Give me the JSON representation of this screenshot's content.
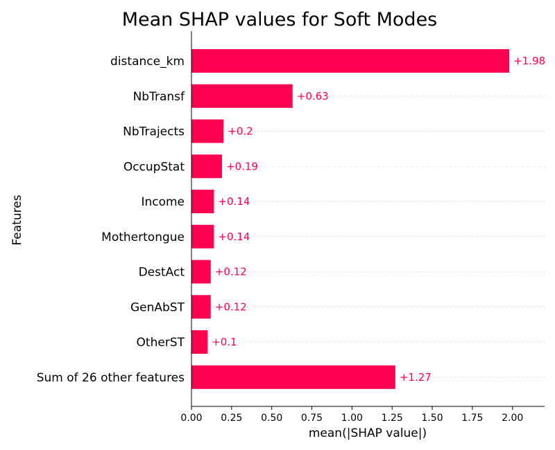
{
  "chart_data": {
    "type": "bar",
    "orientation": "horizontal",
    "title": "Mean SHAP values for Soft Modes",
    "xlabel": "mean(|SHAP value|)",
    "ylabel": "Features",
    "categories": [
      "distance_km",
      "NbTransf",
      "NbTrajects",
      "OccupStat",
      "Income",
      "Mothertongue",
      "DestAct",
      "GenAbST",
      "OtherST",
      "Sum of 26 other features"
    ],
    "values": [
      1.98,
      0.63,
      0.2,
      0.19,
      0.14,
      0.14,
      0.12,
      0.12,
      0.1,
      1.27
    ],
    "data_labels": [
      "+1.98",
      "+0.63",
      "+0.2",
      "+0.19",
      "+0.14",
      "+0.14",
      "+0.12",
      "+0.12",
      "+0.1",
      "+1.27"
    ],
    "xlim": [
      0,
      2.2
    ],
    "xticks": [
      "0.00",
      "0.25",
      "0.50",
      "0.75",
      "1.00",
      "1.25",
      "1.50",
      "1.75",
      "2.00"
    ],
    "bar_color": "#ff0051",
    "grid": "dotted horizontal guide lines",
    "legend": "none"
  }
}
